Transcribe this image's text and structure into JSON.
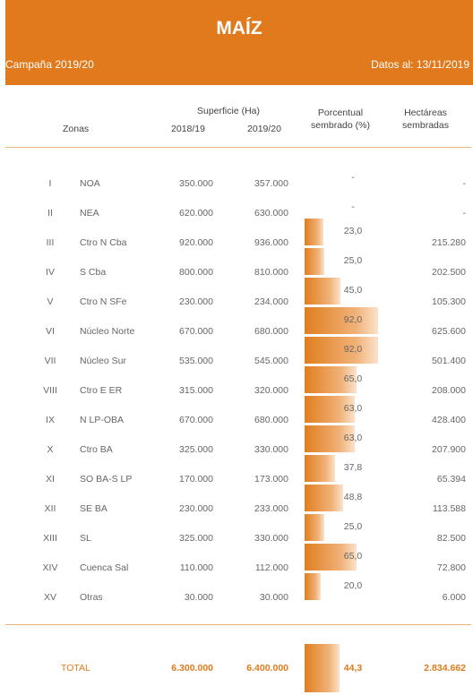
{
  "header": {
    "title": "MAÍZ",
    "campaign": "Campaña 2019/20",
    "date": "Datos al: 13/11/2019"
  },
  "columns": {
    "zones": "Zonas",
    "surface": "Superficie (Ha)",
    "year1": "2018/19",
    "year2": "2019/20",
    "percent_line1": "Porcentual",
    "percent_line2": "sembrado (%)",
    "hectares_line1": "Hectáreas",
    "hectares_line2": "sembradas"
  },
  "chart_data": {
    "type": "table",
    "rows": [
      {
        "roman": "I",
        "zone": "NOA",
        "y2018": "350.000",
        "y2019": "357.000",
        "pct": "-",
        "pct_value": 0,
        "ha": "-"
      },
      {
        "roman": "II",
        "zone": "NEA",
        "y2018": "620.000",
        "y2019": "630.000",
        "pct": "-",
        "pct_value": 0,
        "ha": "-"
      },
      {
        "roman": "III",
        "zone": "Ctro N Cba",
        "y2018": "920.000",
        "y2019": "936.000",
        "pct": "23,0",
        "pct_value": 23.0,
        "ha": "215.280"
      },
      {
        "roman": "IV",
        "zone": "S Cba",
        "y2018": "800.000",
        "y2019": "810.000",
        "pct": "25,0",
        "pct_value": 25.0,
        "ha": "202.500"
      },
      {
        "roman": "V",
        "zone": "Ctro N SFe",
        "y2018": "230.000",
        "y2019": "234.000",
        "pct": "45,0",
        "pct_value": 45.0,
        "ha": "105.300"
      },
      {
        "roman": "VI",
        "zone": "Núcleo Norte",
        "y2018": "670.000",
        "y2019": "680.000",
        "pct": "92,0",
        "pct_value": 92.0,
        "ha": "625.600"
      },
      {
        "roman": "VII",
        "zone": "Núcleo Sur",
        "y2018": "535.000",
        "y2019": "545.000",
        "pct": "92,0",
        "pct_value": 92.0,
        "ha": "501.400"
      },
      {
        "roman": "VIII",
        "zone": "Ctro E ER",
        "y2018": "315.000",
        "y2019": "320.000",
        "pct": "65,0",
        "pct_value": 65.0,
        "ha": "208.000"
      },
      {
        "roman": "IX",
        "zone": "N LP-OBA",
        "y2018": "670.000",
        "y2019": "680.000",
        "pct": "63,0",
        "pct_value": 63.0,
        "ha": "428.400"
      },
      {
        "roman": "X",
        "zone": "Ctro BA",
        "y2018": "325.000",
        "y2019": "330.000",
        "pct": "63,0",
        "pct_value": 63.0,
        "ha": "207.900"
      },
      {
        "roman": "XI",
        "zone": "SO BA-S LP",
        "y2018": "170.000",
        "y2019": "173.000",
        "pct": "37,8",
        "pct_value": 37.8,
        "ha": "65.394"
      },
      {
        "roman": "XII",
        "zone": "SE BA",
        "y2018": "230.000",
        "y2019": "233.000",
        "pct": "48,8",
        "pct_value": 48.8,
        "ha": "113.588"
      },
      {
        "roman": "XIII",
        "zone": "SL",
        "y2018": "325.000",
        "y2019": "330.000",
        "pct": "25,0",
        "pct_value": 25.0,
        "ha": "82.500"
      },
      {
        "roman": "XIV",
        "zone": "Cuenca Sal",
        "y2018": "110.000",
        "y2019": "112.000",
        "pct": "65,0",
        "pct_value": 65.0,
        "ha": "72.800"
      },
      {
        "roman": "XV",
        "zone": "Otras",
        "y2018": "30.000",
        "y2019": "30.000",
        "pct": "20,0",
        "pct_value": 20.0,
        "ha": "6.000"
      }
    ],
    "total": {
      "label": "TOTAL",
      "y2018": "6.300.000",
      "y2019": "6.400.000",
      "pct": "44,3",
      "pct_value": 44.3,
      "ha": "2.834.662"
    },
    "bar_max": 92
  }
}
